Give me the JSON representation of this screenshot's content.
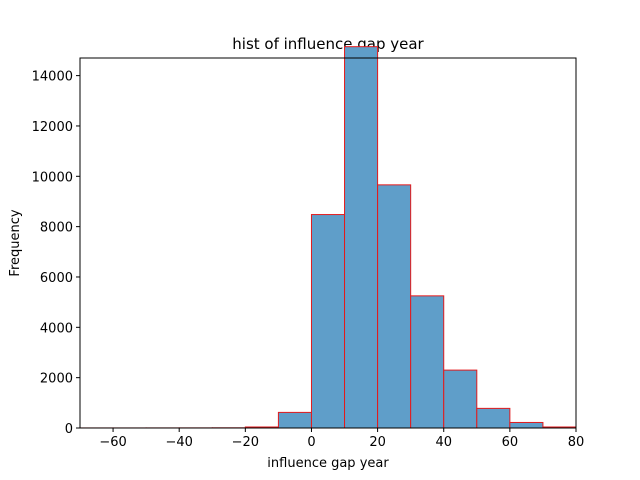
{
  "chart_data": {
    "type": "bar",
    "title": "hist of influence gap year",
    "xlabel": "influence gap year",
    "ylabel": "Frequency",
    "xlim": [
      -70,
      80
    ],
    "ylim": [
      0,
      14700
    ],
    "xticks": [
      -60,
      -40,
      -20,
      0,
      20,
      40,
      60,
      80
    ],
    "yticks": [
      0,
      2000,
      4000,
      6000,
      8000,
      10000,
      12000,
      14000
    ],
    "grid": false,
    "bin_width": 10,
    "bins": [
      {
        "start": -70,
        "end": -60,
        "value": 3
      },
      {
        "start": -60,
        "end": -50,
        "value": 3
      },
      {
        "start": -50,
        "end": -40,
        "value": 4
      },
      {
        "start": -40,
        "end": -30,
        "value": 5
      },
      {
        "start": -30,
        "end": -20,
        "value": 8
      },
      {
        "start": -20,
        "end": -10,
        "value": 40
      },
      {
        "start": -10,
        "end": 0,
        "value": 620
      },
      {
        "start": 0,
        "end": 10,
        "value": 8480
      },
      {
        "start": 10,
        "end": 20,
        "value": 15150
      },
      {
        "start": 20,
        "end": 30,
        "value": 9660
      },
      {
        "start": 30,
        "end": 40,
        "value": 5250
      },
      {
        "start": 40,
        "end": 50,
        "value": 2300
      },
      {
        "start": 50,
        "end": 60,
        "value": 780
      },
      {
        "start": 60,
        "end": 70,
        "value": 220
      },
      {
        "start": 70,
        "end": 80,
        "value": 40
      }
    ],
    "colors": {
      "bar_fill": "#5f9ec9",
      "bar_edge": "#e31a1c",
      "axis": "#000000"
    }
  }
}
